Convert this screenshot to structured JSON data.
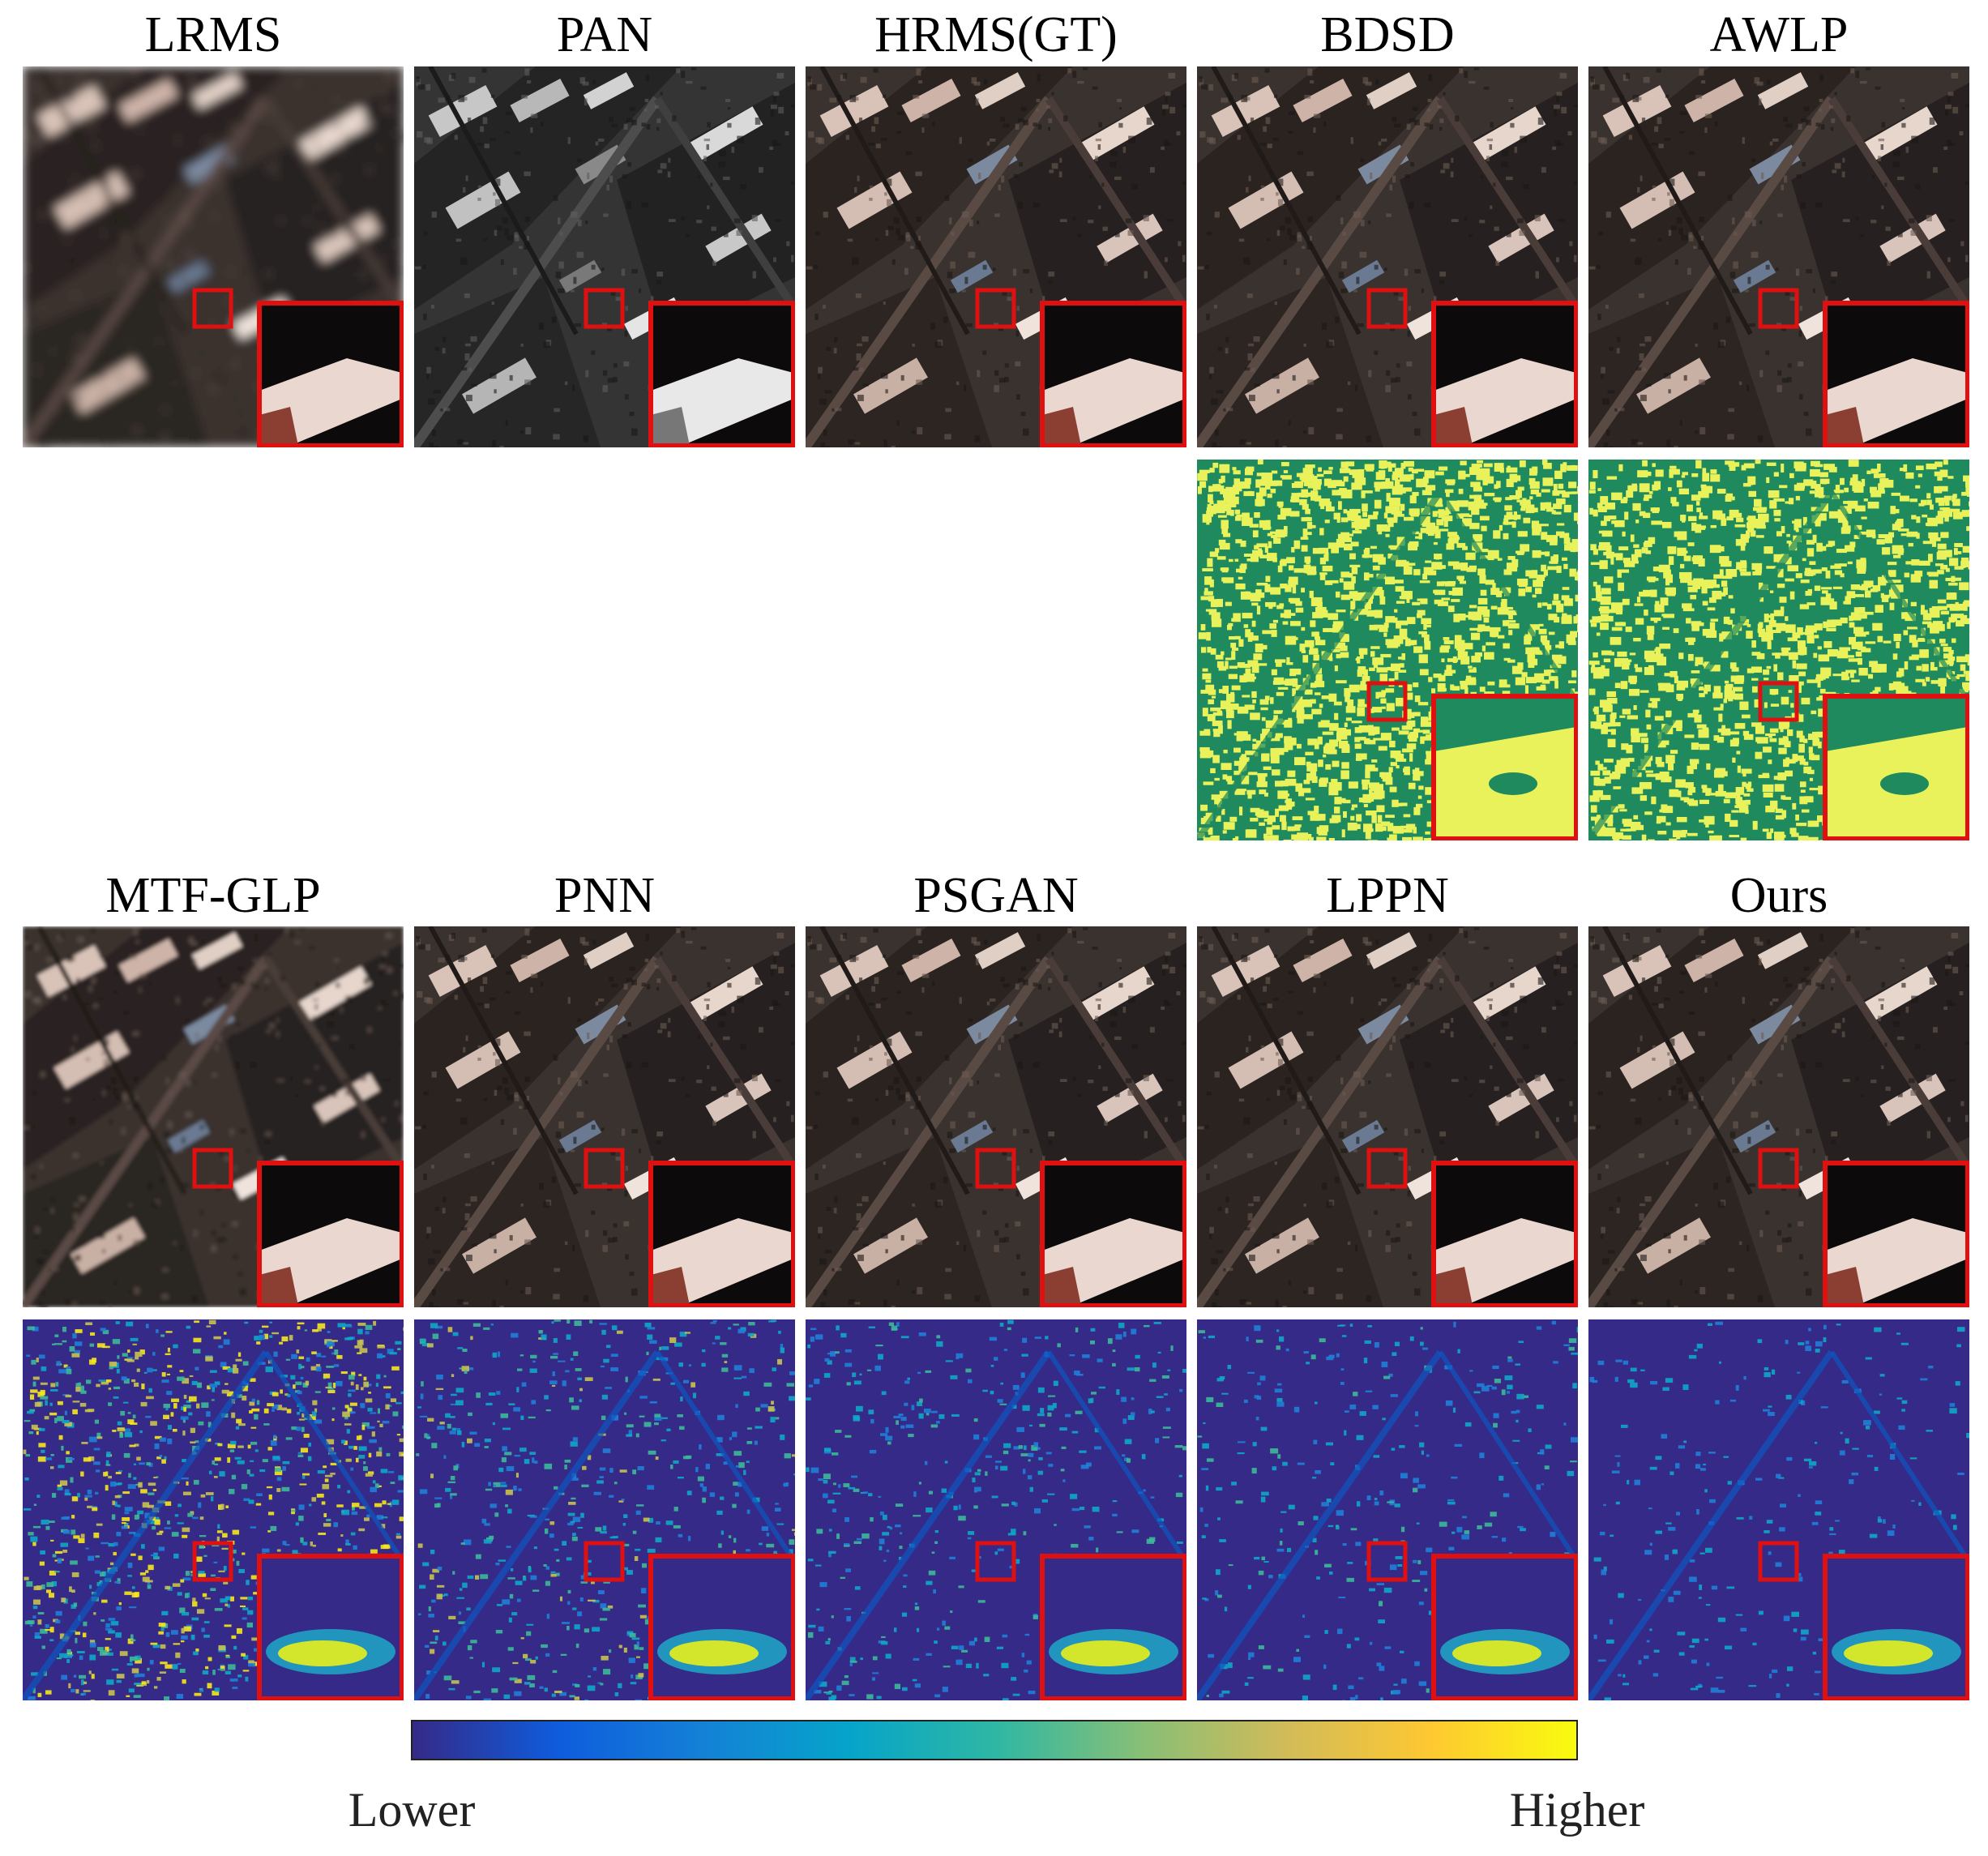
{
  "figure": {
    "top_row": [
      {
        "id": "lrms",
        "title": "LRMS",
        "kind": "rgb",
        "style": "blur"
      },
      {
        "id": "pan",
        "title": "PAN",
        "kind": "rgb",
        "style": "gray"
      },
      {
        "id": "hrms",
        "title": "HRMS(GT)",
        "kind": "rgb",
        "style": "sharp"
      },
      {
        "id": "bdsd",
        "title": "BDSD",
        "kind": "rgb",
        "style": "sharp"
      },
      {
        "id": "awlp",
        "title": "AWLP",
        "kind": "rgb",
        "style": "sharp"
      }
    ],
    "top_error_maps": [
      {
        "id": "bdsd-error",
        "column": 3,
        "palette": "green-yellow",
        "level": 0.65
      },
      {
        "id": "awlp-error",
        "column": 4,
        "palette": "green-yellow",
        "level": 0.55
      }
    ],
    "bottom_row": [
      {
        "id": "mtf-glp",
        "title": "MTF-GLP",
        "kind": "rgb",
        "style": "soft"
      },
      {
        "id": "pnn",
        "title": "PNN",
        "kind": "rgb",
        "style": "sharp"
      },
      {
        "id": "psgan",
        "title": "PSGAN",
        "kind": "rgb",
        "style": "sharp"
      },
      {
        "id": "lppn",
        "title": "LPPN",
        "kind": "rgb",
        "style": "sharp"
      },
      {
        "id": "ours",
        "title": "Ours",
        "kind": "rgb",
        "style": "sharp"
      }
    ],
    "bottom_error_maps": [
      {
        "id": "mtf-glp-error",
        "column": 0,
        "palette": "parula",
        "level": 0.55
      },
      {
        "id": "pnn-error",
        "column": 1,
        "palette": "parula",
        "level": 0.3
      },
      {
        "id": "psgan-error",
        "column": 2,
        "palette": "parula",
        "level": 0.22
      },
      {
        "id": "lppn-error",
        "column": 3,
        "palette": "parula",
        "level": 0.16
      },
      {
        "id": "ours-error",
        "column": 4,
        "palette": "parula",
        "level": 0.12
      }
    ],
    "colorbar": {
      "low_label": "Lower",
      "high_label": "Higher",
      "stops": [
        "#352a87",
        "#0f5cdd",
        "#1481d6",
        "#06a4ca",
        "#2eb7a4",
        "#87bf77",
        "#d1bb59",
        "#fec832",
        "#f9fb0e"
      ]
    },
    "colors": {
      "highlight_box": "#e01010",
      "green_map_dark": "#1f8a5e",
      "green_map_light": "#e9f25a",
      "parula_low": "#352a87"
    }
  }
}
